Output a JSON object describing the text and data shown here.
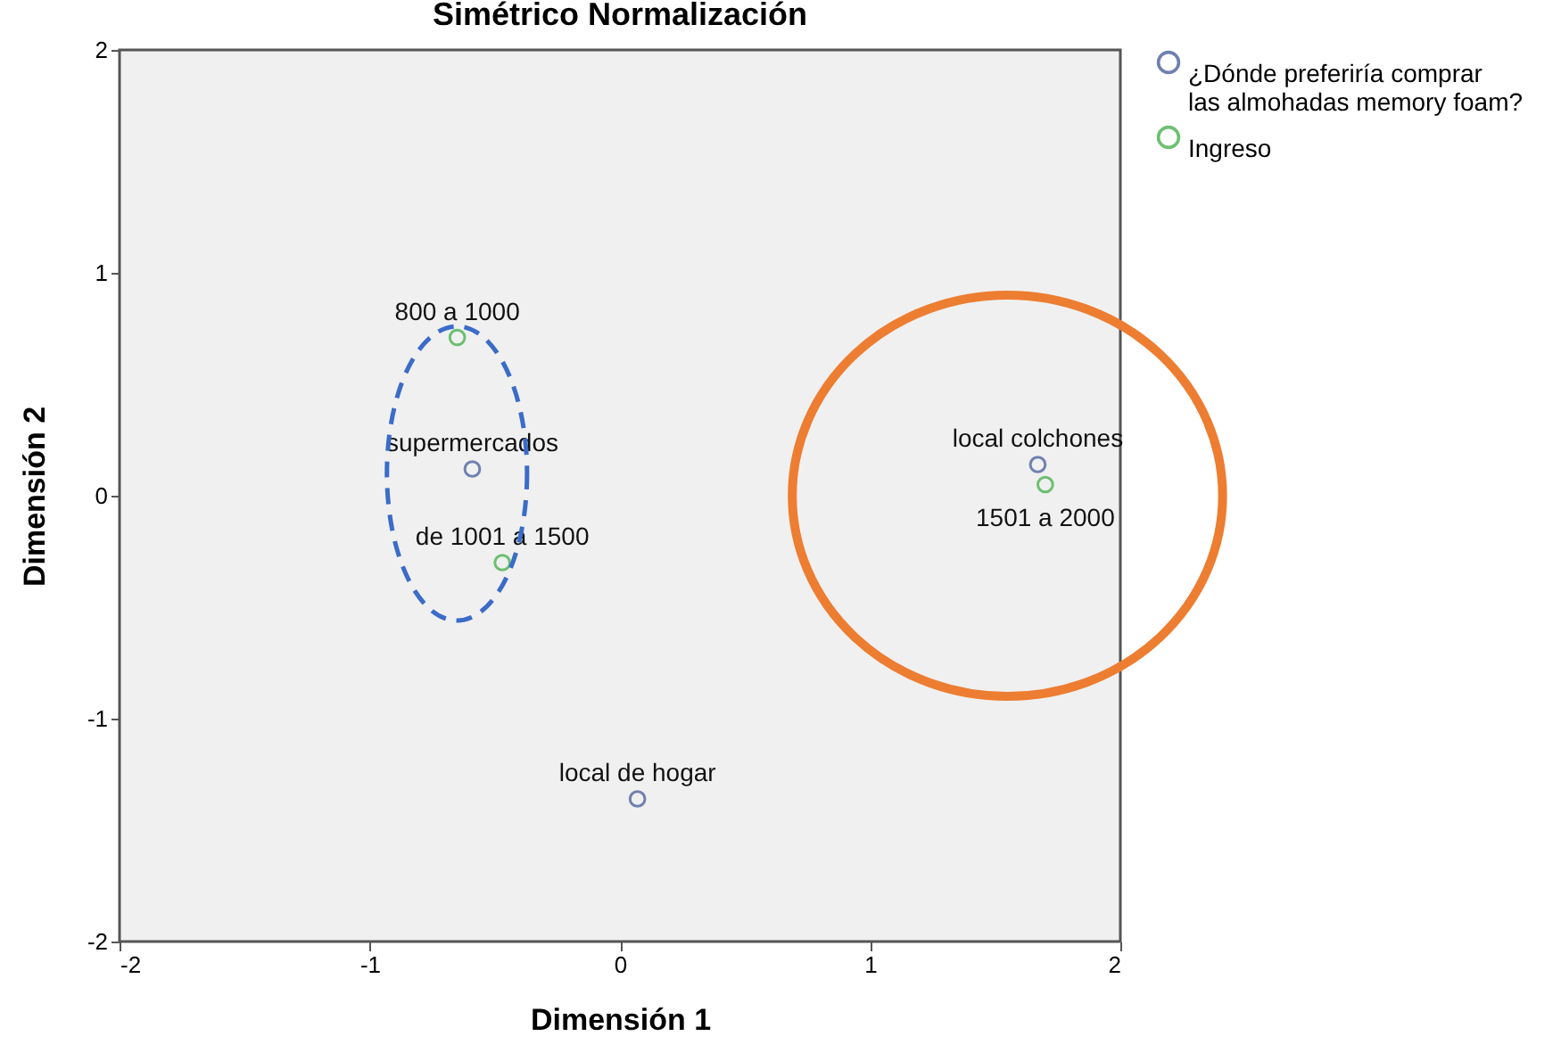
{
  "chart_data": {
    "type": "scatter",
    "title": "Simétrico Normalización",
    "xlabel": "Dimensión 1",
    "ylabel": "Dimensión 2",
    "xlim": [
      -2,
      2
    ],
    "ylim": [
      -2,
      2
    ],
    "xticks": [
      -2,
      -1,
      0,
      1,
      2
    ],
    "yticks": [
      -2,
      -1,
      0,
      1,
      2
    ],
    "grid": false,
    "legend": "top right",
    "marker": "circle",
    "series": [
      {
        "name": "¿Dónde preferiría  comprar las almohadas memory foam?",
        "color": "#7080b0",
        "x": [
          -0.59,
          1.67,
          0.07
        ],
        "values": [
          0.12,
          0.14,
          -1.36
        ]
      },
      {
        "name": "Ingreso",
        "color": "#6cc070",
        "x": [
          -0.65,
          -0.47,
          1.7
        ],
        "values": [
          0.71,
          -0.3,
          0.05
        ]
      }
    ],
    "annotations": [
      {
        "text": "supermercados",
        "x": -0.59,
        "y": 0.12
      },
      {
        "text": "local colchones",
        "x": 1.67,
        "y": 0.14
      },
      {
        "text": "local de hogar",
        "x": 0.07,
        "y": -1.36
      },
      {
        "text": "800 a 1000",
        "x": -0.65,
        "y": 0.71
      },
      {
        "text": "de 1001 a 1500",
        "x": -0.47,
        "y": -0.3
      },
      {
        "text": "1501 a 2000",
        "x": 1.7,
        "y": 0.05
      }
    ]
  }
}
